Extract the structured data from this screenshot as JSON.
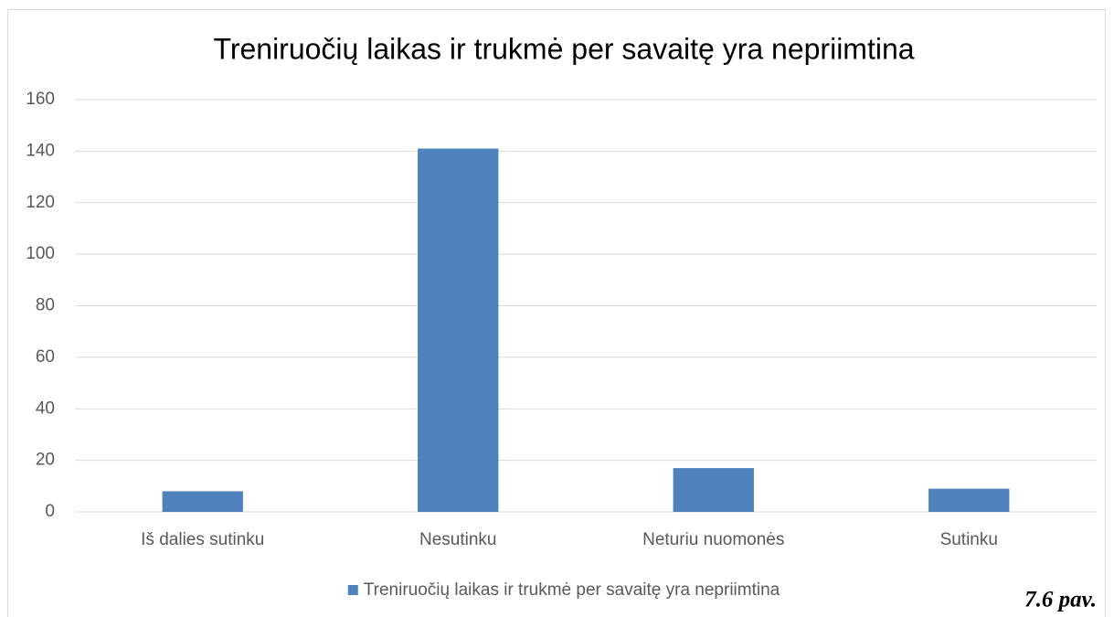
{
  "chart_data": {
    "type": "bar",
    "title": "Treniruočių laikas ir trukmė per savaitę yra nepriimtina",
    "categories": [
      "Iš dalies sutinku",
      "Nesutinku",
      "Neturiu nuomonės",
      "Sutinku"
    ],
    "series": [
      {
        "name": "Treniruočių laikas ir trukmė per savaitę yra nepriimtina",
        "color": "#4f81bd",
        "values": [
          8,
          141,
          17,
          9
        ]
      }
    ],
    "ylim": [
      0,
      160
    ],
    "yticks": [
      0,
      20,
      40,
      60,
      80,
      100,
      120,
      140,
      160
    ],
    "grid": true,
    "legend": "bottom",
    "annotation": "7.6 pav."
  }
}
